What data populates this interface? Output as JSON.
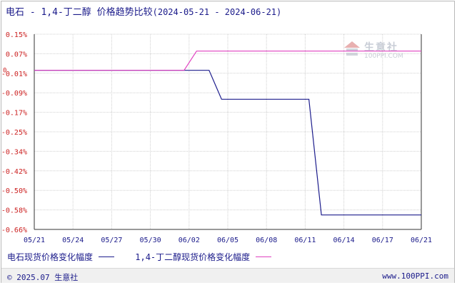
{
  "header": {
    "title": "电石 - 1,4-丁二醇 价格趋势比较",
    "date_range": "(2024-05-21 - 2024-06-21)"
  },
  "watermark": {
    "name": "生意社",
    "url": "100PPI.COM",
    "icon": "100ppi-logo-icon"
  },
  "footer": {
    "copyright": "© 2025.07 生意社",
    "site": "www.100PPI.com"
  },
  "colors": {
    "series1": "#1c1c8c",
    "series2": "#e040c0",
    "ytick_text": "#cc2222",
    "xtick_text": "#1a1a8a",
    "grid": "#d0d0d0",
    "axis": "#333333"
  },
  "chart_data": {
    "type": "line",
    "title": "电石 - 1,4-丁二醇 价格趋势比较",
    "xlabel": "",
    "ylabel": "",
    "x_ticks": [
      "05/21",
      "05/24",
      "05/27",
      "05/30",
      "06/02",
      "06/05",
      "06/08",
      "06/11",
      "06/14",
      "06/17",
      "06/21"
    ],
    "y_ticks": [
      "0.15%",
      "0.07%",
      "-0.01%",
      "-0.09%",
      "-0.17%",
      "-0.25%",
      "-0.34%",
      "-0.42%",
      "-0.50%",
      "-0.58%",
      "-0.66%"
    ],
    "y_zero_label": "0",
    "ylim": [
      -0.66,
      0.15
    ],
    "xlim": [
      "2024-05-21",
      "2024-06-21"
    ],
    "grid": true,
    "legend_position": "bottom-left",
    "series": [
      {
        "name": "电石现货价格变化幅度",
        "color": "#1c1c8c",
        "points": [
          {
            "x": "2024-05-21",
            "y": 0.0
          },
          {
            "x": "2024-06-04",
            "y": 0.0
          },
          {
            "x": "2024-06-05",
            "y": -0.12
          },
          {
            "x": "2024-06-12",
            "y": -0.12
          },
          {
            "x": "2024-06-13",
            "y": -0.6
          },
          {
            "x": "2024-06-21",
            "y": -0.6
          }
        ]
      },
      {
        "name": "1,4-丁二醇现货价格变化幅度",
        "color": "#e040c0",
        "points": [
          {
            "x": "2024-05-21",
            "y": 0.0
          },
          {
            "x": "2024-06-02",
            "y": 0.0
          },
          {
            "x": "2024-06-03",
            "y": 0.08
          },
          {
            "x": "2024-06-21",
            "y": 0.08
          }
        ]
      }
    ]
  }
}
